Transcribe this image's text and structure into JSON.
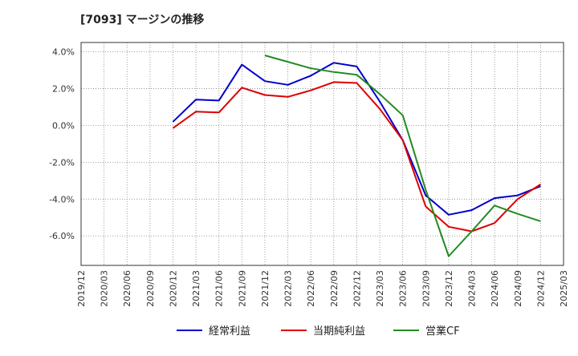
{
  "chart_data": {
    "type": "line",
    "title": "[7093]  マージンの推移",
    "x": [
      "2019/12",
      "2020/03",
      "2020/06",
      "2020/09",
      "2020/12",
      "2021/03",
      "2021/06",
      "2021/09",
      "2021/12",
      "2022/03",
      "2022/06",
      "2022/09",
      "2022/12",
      "2023/03",
      "2023/06",
      "2023/09",
      "2023/12",
      "2024/03",
      "2024/06",
      "2024/09",
      "2024/12",
      "2025/03"
    ],
    "yticks": [
      4.0,
      2.0,
      0.0,
      -2.0,
      -4.0,
      -6.0
    ],
    "ytick_labels": [
      "4.0%",
      "2.0%",
      "0.0%",
      "-2.0%",
      "-4.0%",
      "-6.0%"
    ],
    "ylim": [
      -7.6,
      4.5
    ],
    "grid": true,
    "legend_position": "bottom",
    "series": [
      {
        "name": "経常利益",
        "color": "#0000cc",
        "values": [
          null,
          null,
          null,
          null,
          0.2,
          1.4,
          1.35,
          3.3,
          2.4,
          2.2,
          2.7,
          3.4,
          3.2,
          1.3,
          -0.8,
          -3.8,
          -4.85,
          -4.6,
          -3.95,
          -3.8,
          -3.3,
          null
        ]
      },
      {
        "name": "当期純利益",
        "color": "#dd0000",
        "values": [
          null,
          null,
          null,
          null,
          -0.15,
          0.75,
          0.7,
          2.05,
          1.65,
          1.55,
          1.9,
          2.35,
          2.3,
          0.9,
          -0.8,
          -4.4,
          -5.5,
          -5.75,
          -5.3,
          -4.0,
          -3.2,
          null
        ]
      },
      {
        "name": "営業CF",
        "color": "#228b22",
        "values": [
          null,
          null,
          null,
          null,
          null,
          null,
          null,
          null,
          3.8,
          3.45,
          3.1,
          2.9,
          2.75,
          1.7,
          0.55,
          -3.5,
          -7.1,
          -5.75,
          -4.35,
          -4.8,
          -5.2,
          null
        ]
      }
    ]
  }
}
